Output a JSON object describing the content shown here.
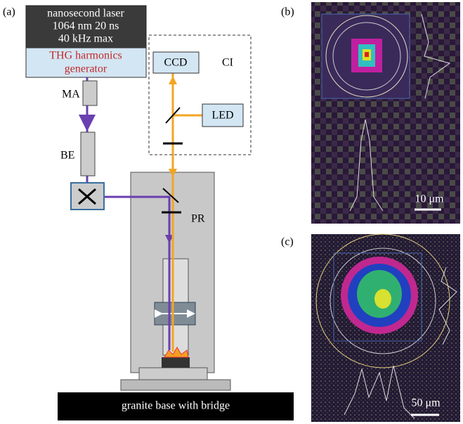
{
  "panel_a": {
    "label": "(a)",
    "laser": [
      "nanosecond laser",
      "1064 nm 20 ns",
      "40 kHz max"
    ],
    "harmonics": [
      "THG harmonics",
      "generator"
    ],
    "ma": "MA",
    "be": "BE",
    "ccd": "CCD",
    "ci": "CI",
    "led": "LED",
    "pr": "PR",
    "base": "granite base with bridge"
  },
  "panel_b": {
    "label": "(b)",
    "scale": "10 μm"
  },
  "panel_c": {
    "label": "(c)",
    "scale": "50 μm"
  }
}
